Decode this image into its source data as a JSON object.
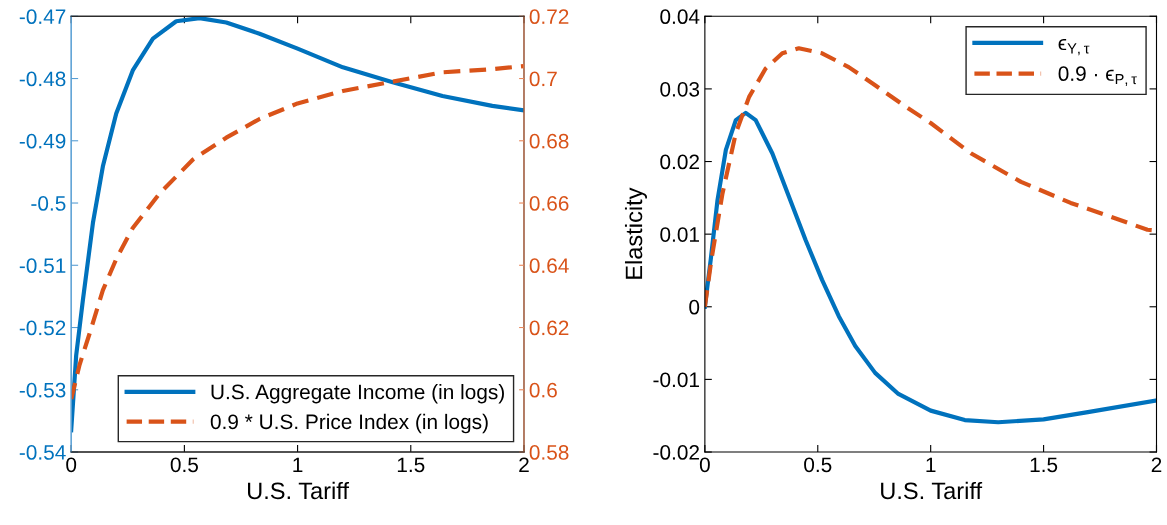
{
  "chart_data": [
    {
      "type": "line",
      "xlabel": "U.S. Tariff",
      "xlim": [
        0,
        2
      ],
      "xticks": [
        0,
        0.5,
        1,
        1.5,
        2
      ],
      "ylim": [
        -0.54,
        -0.47
      ],
      "yticks": [
        -0.54,
        -0.53,
        -0.52,
        -0.51,
        -0.5,
        -0.49,
        -0.48,
        -0.47
      ],
      "y2lim": [
        0.58,
        0.72
      ],
      "y2ticks": [
        0.58,
        0.6,
        0.62,
        0.64,
        0.66,
        0.68,
        0.7,
        0.72
      ],
      "legend": "bottom right",
      "grid": false,
      "series": [
        {
          "name": "U.S. Aggregate Income (in logs)",
          "color": "#0072bd",
          "line_style": "solid",
          "x": [
            0,
            0.022,
            0.052,
            0.096,
            0.14,
            0.199,
            0.272,
            0.361,
            0.464,
            0.567,
            0.685,
            0.832,
            1.0,
            1.2,
            1.42,
            1.64,
            1.86,
            2.0
          ],
          "values": [
            -0.5365,
            -0.5245,
            -0.5155,
            -0.5032,
            -0.4941,
            -0.4856,
            -0.4787,
            -0.4736,
            -0.4708,
            -0.4703,
            -0.471,
            -0.4728,
            -0.4752,
            -0.4782,
            -0.4806,
            -0.4828,
            -0.4844,
            -0.4851
          ]
        },
        {
          "name": "0.9 * U.S. Price Index (in logs)",
          "color": "#d95319",
          "line_style": "dashed",
          "axis": "y2",
          "x": [
            0,
            0.037,
            0.081,
            0.14,
            0.199,
            0.272,
            0.39,
            0.538,
            0.685,
            0.832,
            1.0,
            1.2,
            1.42,
            1.64,
            1.86,
            2.0
          ],
          "values": [
            0.597,
            0.608,
            0.618,
            0.632,
            0.642,
            0.652,
            0.663,
            0.674,
            0.681,
            0.687,
            0.692,
            0.696,
            0.699,
            0.702,
            0.703,
            0.704
          ]
        }
      ]
    },
    {
      "type": "line",
      "xlabel": "U.S. Tariff",
      "ylabel": "Elasticity",
      "xlim": [
        0,
        2
      ],
      "xticks": [
        0,
        0.5,
        1,
        1.5,
        2
      ],
      "ylim": [
        -0.02,
        0.04
      ],
      "yticks": [
        -0.02,
        -0.01,
        0,
        0.01,
        0.02,
        0.03,
        0.04
      ],
      "legend": "top right",
      "grid": false,
      "series": [
        {
          "name": "ϵ$_{Y,τ}$",
          "color": "#0072bd",
          "line_style": "solid",
          "x": [
            0,
            0.026,
            0.056,
            0.093,
            0.137,
            0.181,
            0.225,
            0.299,
            0.372,
            0.446,
            0.519,
            0.593,
            0.666,
            0.754,
            0.857,
            1.0,
            1.151,
            1.299,
            1.5,
            1.696,
            2.0
          ],
          "values": [
            0,
            0.0065,
            0.0147,
            0.0216,
            0.0257,
            0.0267,
            0.0257,
            0.0211,
            0.0152,
            0.0092,
            0.0037,
            -0.0013,
            -0.0054,
            -0.0091,
            -0.012,
            -0.0143,
            -0.0156,
            -0.0159,
            -0.0155,
            -0.0145,
            -0.0129
          ]
        },
        {
          "name": "0.9 · ϵ$_{P,τ}$",
          "color": "#d95319",
          "line_style": "dashed",
          "x": [
            0,
            0.029,
            0.078,
            0.137,
            0.196,
            0.269,
            0.343,
            0.416,
            0.519,
            0.637,
            0.754,
            0.887,
            1.0,
            1.18,
            1.4,
            1.62,
            1.77,
            1.96,
            2.0
          ],
          "values": [
            0,
            0.0065,
            0.0156,
            0.0239,
            0.0289,
            0.0328,
            0.0349,
            0.0356,
            0.0349,
            0.033,
            0.0305,
            0.0276,
            0.0253,
            0.0211,
            0.0172,
            0.0143,
            0.0127,
            0.0106,
            0.0105
          ]
        }
      ]
    }
  ]
}
